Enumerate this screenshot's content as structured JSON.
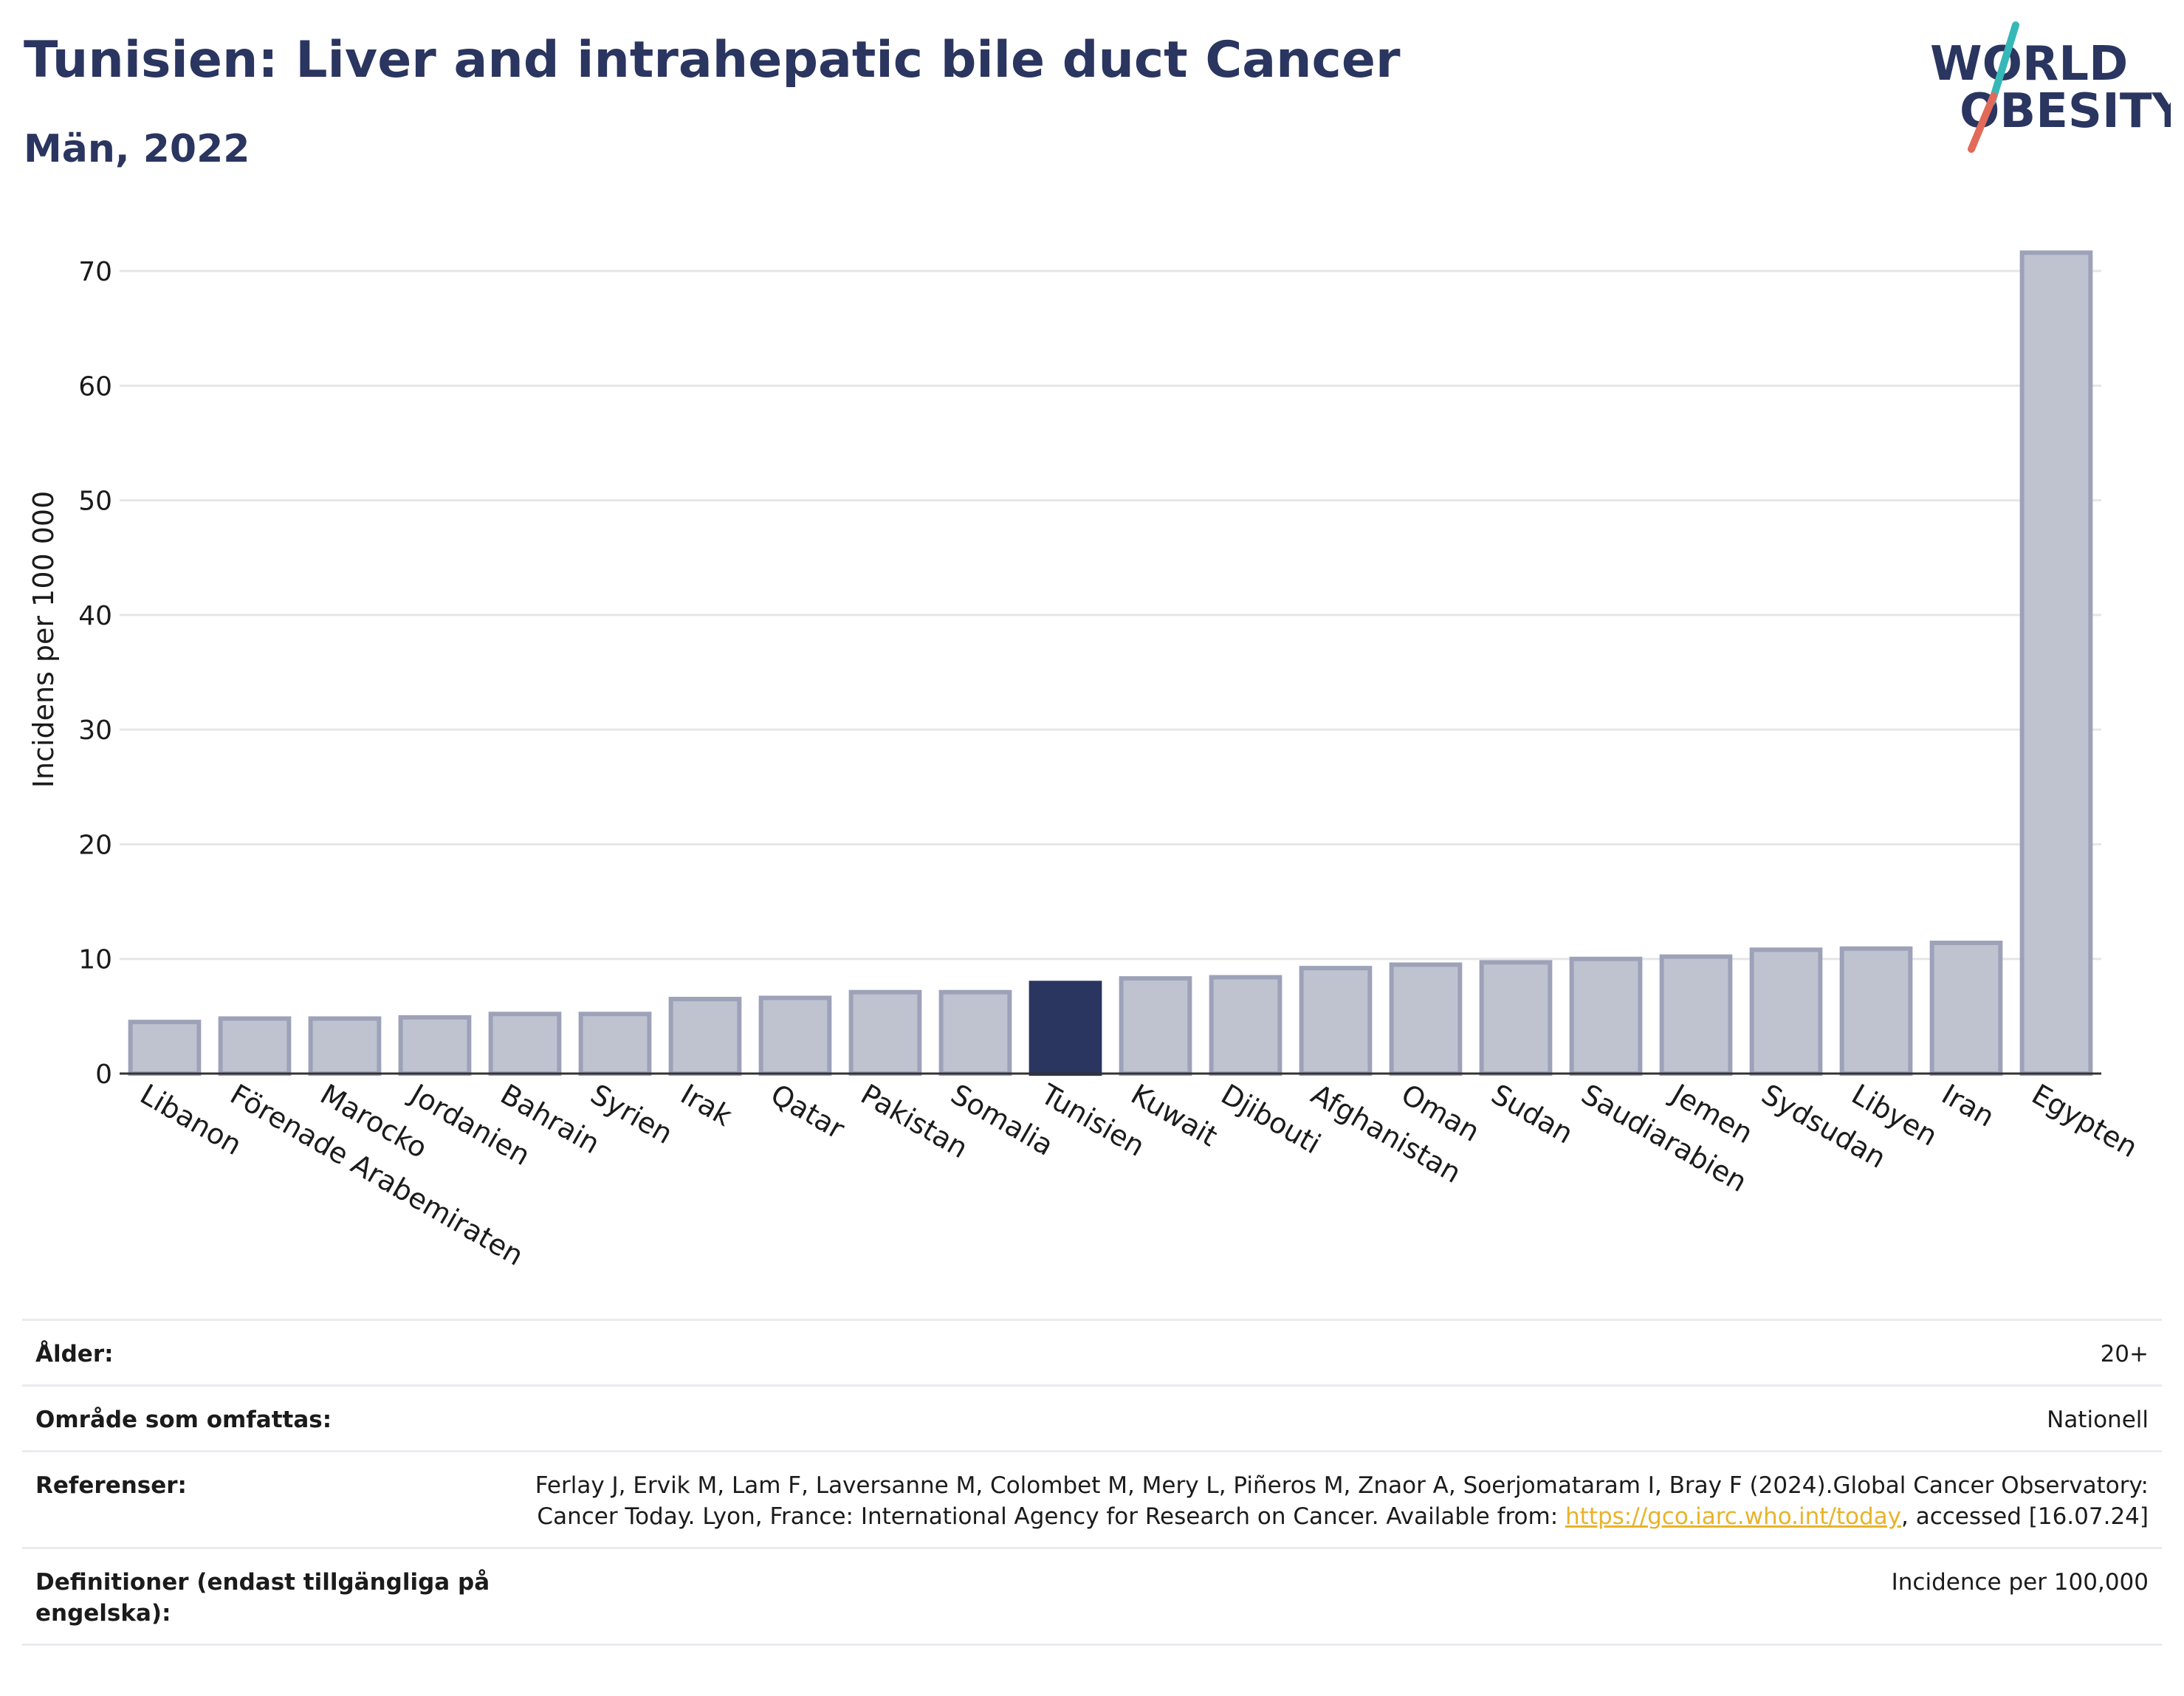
{
  "header": {
    "title": "Tunisien: Liver and intrahepatic bile duct Cancer",
    "subtitle": "Män, 2022"
  },
  "logo": {
    "line1": "WORLD",
    "line2": "OBESITY",
    "colors": {
      "text": "#2a3560",
      "slash_teal": "#36b8b8",
      "slash_coral": "#e26a5a"
    }
  },
  "chart_data": {
    "type": "bar",
    "title": "Tunisien: Liver and intrahepatic bile duct Cancer",
    "subtitle": "Män, 2022",
    "ylabel": "Incidens per 100 000",
    "xlabel": "",
    "ylim": [
      0,
      72
    ],
    "yticks": [
      0,
      10,
      20,
      30,
      40,
      50,
      60,
      70
    ],
    "grid": true,
    "highlight": "Tunisien",
    "colors": {
      "bar": "#bfc3d0",
      "bar_border": "#9da2b9",
      "highlight": "#2a3560",
      "axis": "#333333",
      "grid": "#e6e6e6"
    },
    "categories": [
      "Libanon",
      "Förenade Arabemiraten",
      "Marocko",
      "Jordanien",
      "Bahrain",
      "Syrien",
      "Irak",
      "Qatar",
      "Pakistan",
      "Somalia",
      "Tunisien",
      "Kuwait",
      "Djibouti",
      "Afghanistan",
      "Oman",
      "Sudan",
      "Saudiarabien",
      "Jemen",
      "Sydsudan",
      "Libyen",
      "Iran",
      "Egypten"
    ],
    "values": [
      4.5,
      4.8,
      4.8,
      4.9,
      5.2,
      5.2,
      6.5,
      6.6,
      7.1,
      7.1,
      7.9,
      8.3,
      8.4,
      9.2,
      9.5,
      9.7,
      10.0,
      10.2,
      10.8,
      10.9,
      11.4,
      71.6
    ]
  },
  "meta": {
    "age_label": "Ålder:",
    "age_value": "20+",
    "coverage_label": "Område som omfattas:",
    "coverage_value": "Nationell",
    "references_label": "Referenser:",
    "references_text_1": "Ferlay J, Ervik M, Lam F, Laversanne M, Colombet M, Mery L, Piñeros M, Znaor A, Soerjomataram I, Bray F (2024).Global Cancer Observatory: Cancer Today. Lyon, France: International Agency for Research on Cancer. Available from: ",
    "references_link": "https://gco.iarc.who.int/today",
    "references_text_2": ", accessed [16.07.24]",
    "definitions_label": "Definitioner (endast tillgängliga på engelska):",
    "definitions_value": "Incidence per 100,000"
  }
}
